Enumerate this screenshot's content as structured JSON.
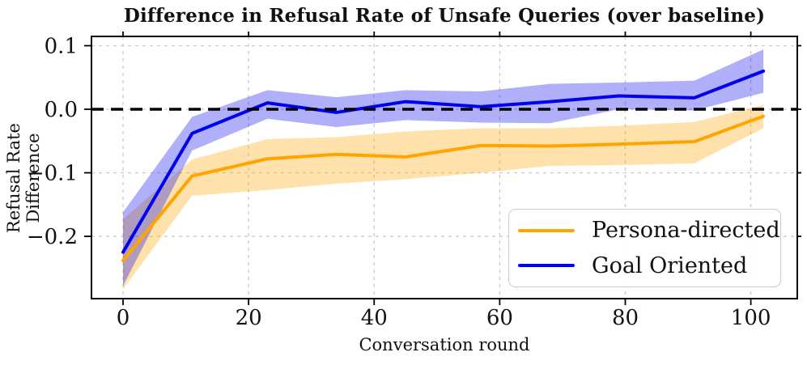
{
  "chart_data": {
    "type": "line",
    "title": "Difference in Refusal Rate of Unsafe Queries (over baseline)",
    "xlabel": "Conversation round",
    "ylabel": "Refusal Rate Difference",
    "xlim": [
      -5.03,
      107.4
    ],
    "ylim": [
      -0.298,
      0.1146
    ],
    "xticks": [
      0,
      20,
      40,
      60,
      80,
      100
    ],
    "xtick_labels": [
      "0",
      "20",
      "40",
      "60",
      "80",
      "100"
    ],
    "yticks": [
      0.1,
      0.0,
      -0.1,
      -0.2
    ],
    "ytick_labels": [
      "0.1",
      "0.0",
      "−0.1",
      "−0.2"
    ],
    "grid": true,
    "grid_color": "#c9c9c9",
    "zero_line": {
      "value": 0.0,
      "color": "#000000",
      "style": "dashed"
    },
    "x": [
      0,
      11,
      23,
      34,
      45,
      57,
      68,
      79,
      91,
      102
    ],
    "series": [
      {
        "name": "Persona-directed",
        "color": "#FFA500",
        "band_opacity": 0.33,
        "values": [
          -0.238,
          -0.105,
          -0.078,
          -0.071,
          -0.075,
          -0.057,
          -0.058,
          -0.055,
          -0.051,
          -0.011
        ],
        "band_upper": [
          -0.173,
          -0.079,
          -0.047,
          -0.044,
          -0.035,
          -0.03,
          -0.03,
          -0.026,
          -0.02,
          0.007
        ],
        "band_lower": [
          -0.283,
          -0.136,
          -0.127,
          -0.117,
          -0.11,
          -0.1,
          -0.089,
          -0.088,
          -0.085,
          -0.03
        ]
      },
      {
        "name": "Goal Oriented",
        "color": "#0000EE",
        "band_opacity": 0.31,
        "values": [
          -0.225,
          -0.038,
          0.01,
          -0.005,
          0.012,
          0.004,
          0.012,
          0.021,
          0.018,
          0.06
        ],
        "band_upper": [
          -0.162,
          -0.012,
          0.03,
          0.019,
          0.03,
          0.028,
          0.04,
          0.042,
          0.045,
          0.094
        ],
        "band_lower": [
          -0.278,
          -0.065,
          -0.015,
          -0.028,
          -0.017,
          -0.021,
          -0.022,
          0.0,
          -0.002,
          0.026
        ]
      }
    ],
    "legend": {
      "position": "lower right"
    },
    "axis_color": "#000000",
    "background": "#ffffff"
  }
}
